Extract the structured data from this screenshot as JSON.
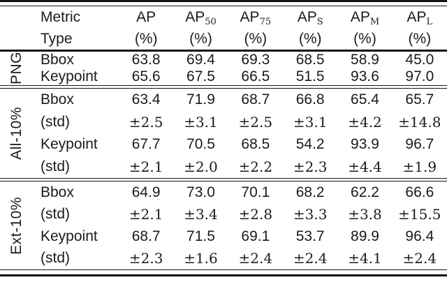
{
  "header": {
    "metric_label": "Metric",
    "type_label": "Type",
    "columns": [
      {
        "base": "AP",
        "sub": "",
        "unit": "(%)"
      },
      {
        "base": "AP",
        "sub": "50",
        "unit": "(%)"
      },
      {
        "base": "AP",
        "sub": "75",
        "unit": "(%)"
      },
      {
        "base": "AP",
        "sub": "S",
        "unit": "(%)"
      },
      {
        "base": "AP",
        "sub": "M",
        "unit": "(%)"
      },
      {
        "base": "AP",
        "sub": "L",
        "unit": "(%)"
      }
    ]
  },
  "sections": [
    {
      "label": "PNG",
      "rows": [
        {
          "metric": "Bbox",
          "values": [
            "63.8",
            "69.4",
            "69.3",
            "68.5",
            "58.9",
            "45.0"
          ]
        },
        {
          "metric": "Keypoint",
          "values": [
            "65.6",
            "67.5",
            "66.5",
            "51.5",
            "93.6",
            "97.0"
          ]
        }
      ]
    },
    {
      "label": "All-10%",
      "rows": [
        {
          "metric": "Bbox",
          "values": [
            "63.4",
            "71.9",
            "68.7",
            "66.8",
            "65.4",
            "65.7"
          ]
        },
        {
          "metric": "(std)",
          "values": [
            "±2.5",
            "±3.1",
            "±2.5",
            "±3.1",
            "±4.2",
            "±14.8"
          ]
        },
        {
          "metric": "Keypoint",
          "values": [
            "67.7",
            "70.5",
            "68.5",
            "54.2",
            "93.9",
            "96.7"
          ]
        },
        {
          "metric": "(std)",
          "values": [
            "±2.1",
            "±2.0",
            "±2.2",
            "±2.3",
            "±4.4",
            "±1.9"
          ]
        }
      ]
    },
    {
      "label": "Ext-10%",
      "rows": [
        {
          "metric": "Bbox",
          "values": [
            "64.9",
            "73.0",
            "70.1",
            "68.2",
            "62.2",
            "66.6"
          ]
        },
        {
          "metric": "(std)",
          "values": [
            "±2.1",
            "±3.4",
            "±2.8",
            "±3.3",
            "±3.8",
            "±15.5"
          ]
        },
        {
          "metric": "Keypoint",
          "values": [
            "68.7",
            "71.5",
            "69.1",
            "53.7",
            "89.9",
            "96.4"
          ]
        },
        {
          "metric": "(std)",
          "values": [
            "±2.3",
            "±1.6",
            "±2.4",
            "±2.4",
            "±4.1",
            "±2.4"
          ]
        }
      ]
    }
  ],
  "colors": {
    "text": "#1b1b1b",
    "rule": "#141414",
    "background": "#ffffff"
  }
}
